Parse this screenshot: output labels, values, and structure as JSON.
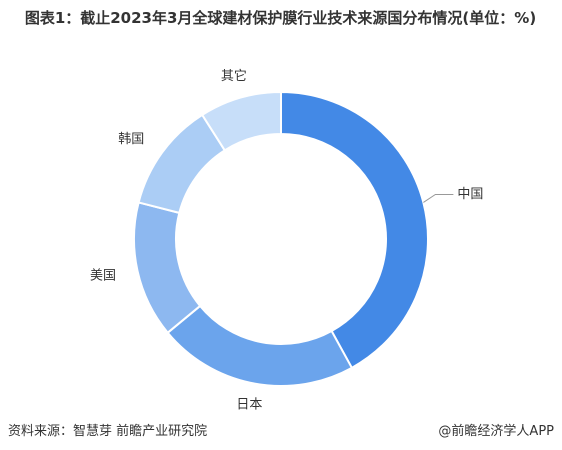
{
  "chart_data": {
    "type": "donut",
    "title": "图表1：截止2023年3月全球建材保护膜行业技术来源国分布情况(单位：%)",
    "categories": [
      "中国",
      "日本",
      "美国",
      "韩国",
      "其它"
    ],
    "values": [
      42,
      22,
      15,
      12,
      9
    ],
    "colors": [
      "#4389e6",
      "#6ba4ec",
      "#8db8f0",
      "#abcdf5",
      "#c7def9"
    ],
    "source": "资料来源：智慧芽 前瞻产业研究院",
    "brand": "@前瞻经济学人APP"
  }
}
